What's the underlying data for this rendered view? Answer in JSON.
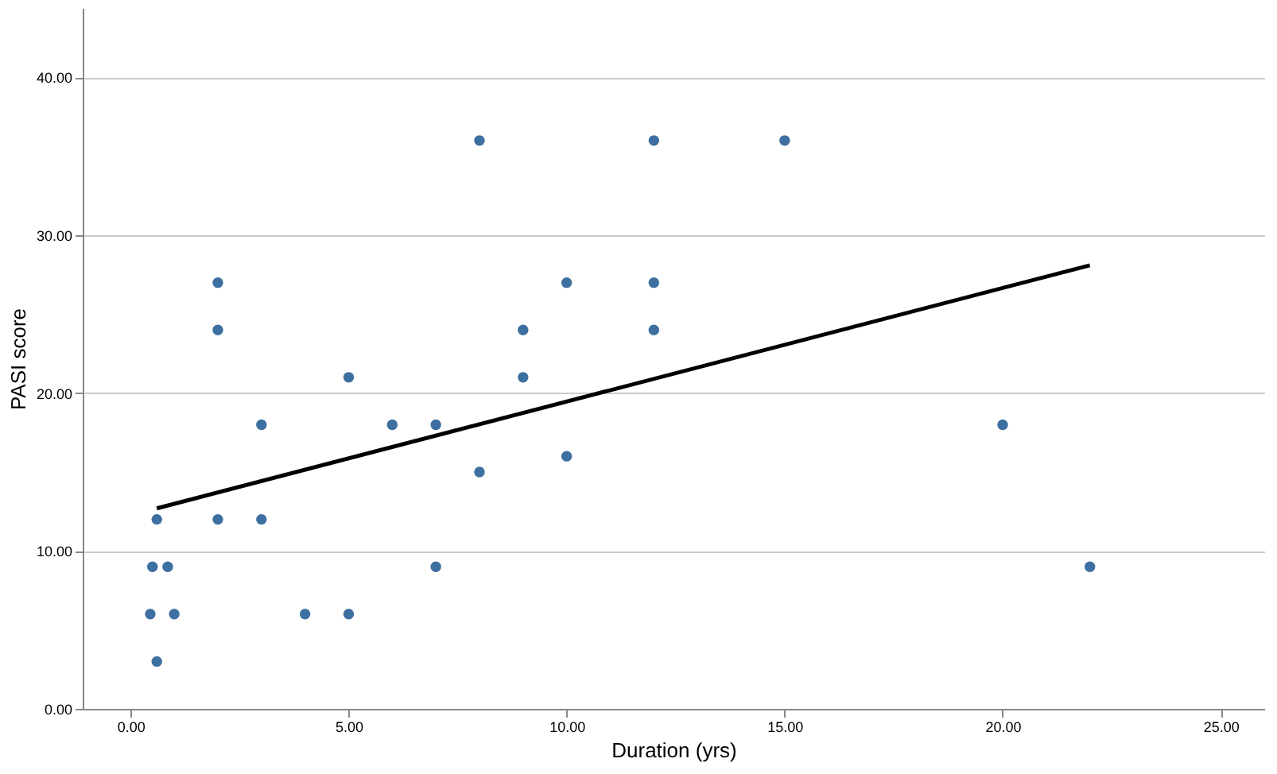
{
  "chart_data": {
    "type": "scatter",
    "xlabel": "Duration (yrs)",
    "ylabel": "PASI score",
    "xlim": [
      -1.1,
      26
    ],
    "ylim": [
      0,
      44.4
    ],
    "xticks": [
      {
        "value": 0,
        "label": "0.00"
      },
      {
        "value": 5,
        "label": "5.00"
      },
      {
        "value": 10,
        "label": "10.00"
      },
      {
        "value": 15,
        "label": "15.00"
      },
      {
        "value": 20,
        "label": "20.00"
      },
      {
        "value": 25,
        "label": "25.00"
      }
    ],
    "yticks": [
      {
        "value": 0,
        "label": "0.00"
      },
      {
        "value": 10,
        "label": "10.00"
      },
      {
        "value": 20,
        "label": "20.00"
      },
      {
        "value": 30,
        "label": "30.00"
      },
      {
        "value": 40,
        "label": "40.00"
      }
    ],
    "grid": "y",
    "marker": "circle",
    "series": [
      {
        "color": "#3d6fa0",
        "x": [
          0.6,
          0.45,
          0.5,
          0.6,
          0.85,
          1,
          2,
          2,
          2,
          3,
          3,
          4,
          5,
          5,
          6,
          7,
          7,
          8,
          8,
          9,
          9,
          10,
          10,
          12,
          12,
          12,
          15,
          20,
          22
        ],
        "values": [
          3,
          6,
          9,
          12,
          9,
          6,
          12,
          24,
          27,
          18,
          12,
          6,
          21,
          6,
          18,
          18,
          9,
          36,
          15,
          24,
          21,
          27,
          16,
          36,
          27,
          24,
          36,
          18,
          9
        ]
      },
      {
        "type": "line",
        "color": "#000000",
        "x": [
          0.6,
          22
        ],
        "values": [
          12.7,
          28.1
        ],
        "line_style": "solid",
        "marker": "none"
      }
    ]
  }
}
